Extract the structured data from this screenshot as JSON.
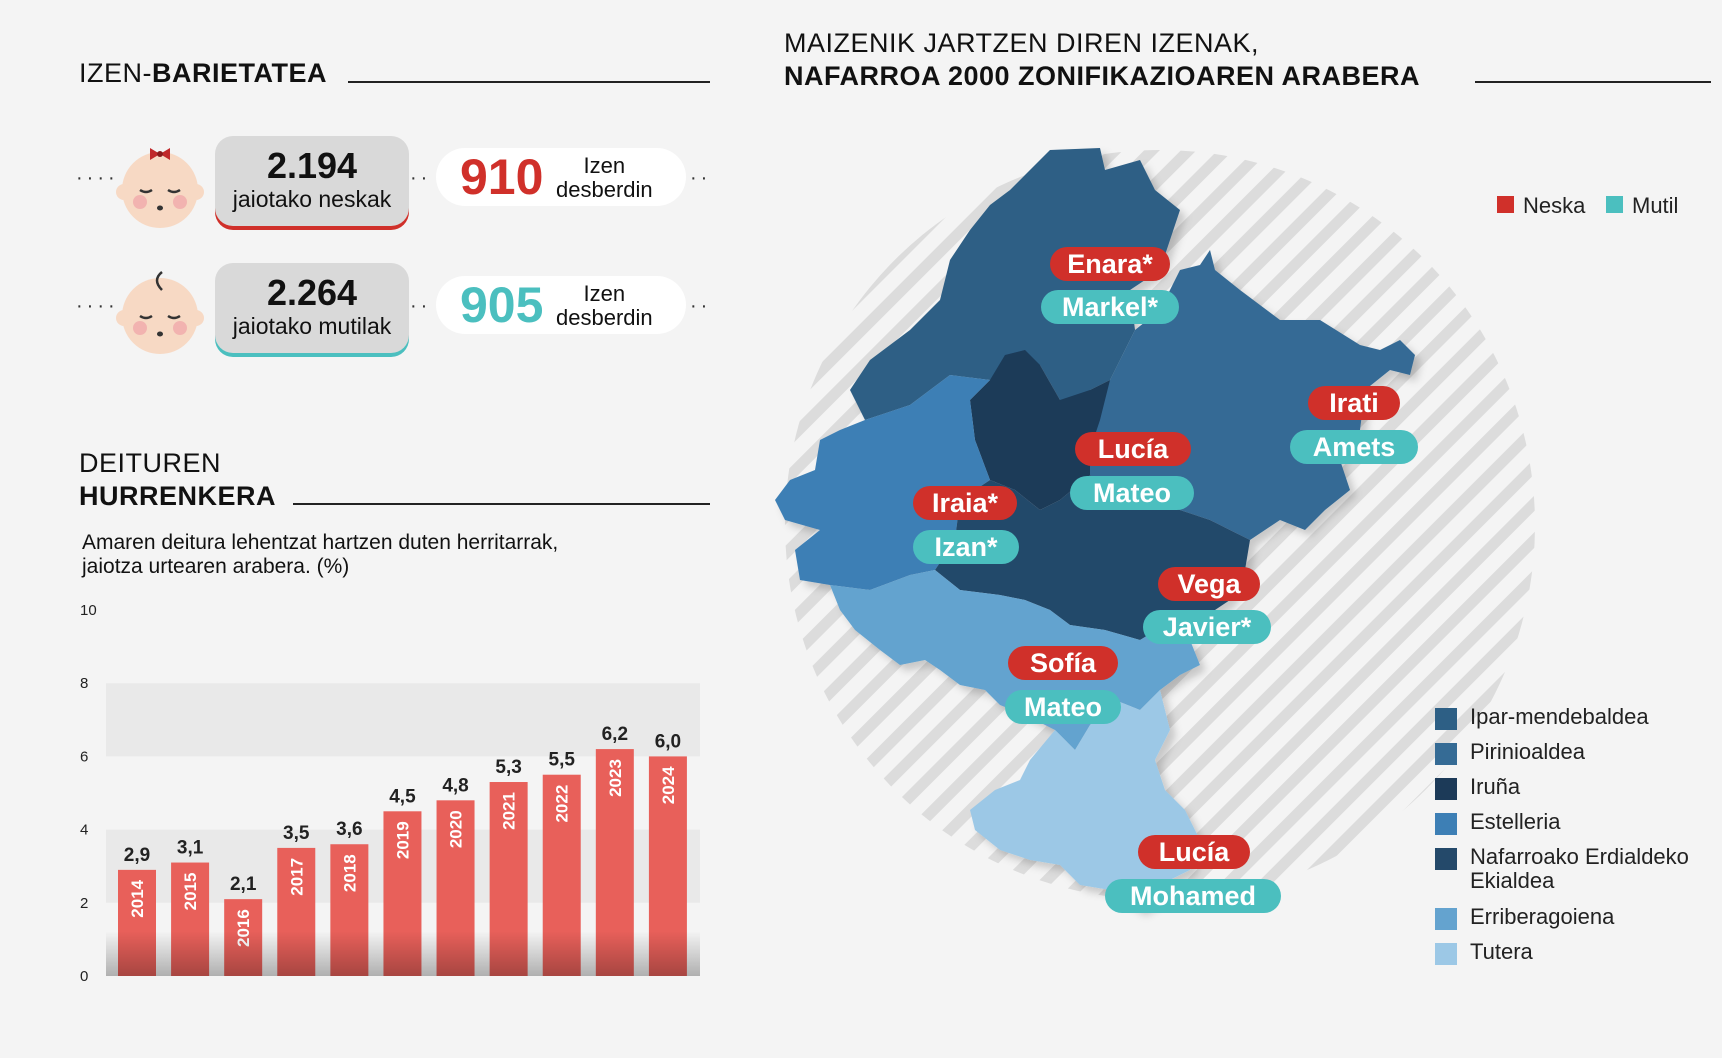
{
  "left": {
    "variety": {
      "title_light": "IZEN-",
      "title_bold": "BARIETATEA"
    },
    "girls": {
      "count": "2.194",
      "label": "jaiotako neskak",
      "unique_count": "910",
      "unique_label_1": "Izen",
      "unique_label_2": "desberdin",
      "color": "#d0302a"
    },
    "boys": {
      "count": "2.264",
      "label": "jaiotako mutilak",
      "unique_count": "905",
      "unique_label_1": "Izen",
      "unique_label_2": "desberdin",
      "color": "#4bbfbf"
    },
    "surnames": {
      "title_light": "DEITUREN",
      "title_bold": "HURRENKERA",
      "subtitle_1": "Amaren deitura lehentzat hartzen duten herritarrak,",
      "subtitle_2": "jaiotza urtearen arabera. (%)"
    }
  },
  "chart_data": {
    "type": "bar",
    "categories": [
      "2014",
      "2015",
      "2016",
      "2017",
      "2018",
      "2019",
      "2020",
      "2021",
      "2022",
      "2023",
      "2024"
    ],
    "values": [
      2.9,
      3.1,
      2.1,
      3.5,
      3.6,
      4.5,
      4.8,
      5.3,
      5.5,
      6.2,
      6.0
    ],
    "value_labels": [
      "2,9",
      "3,1",
      "2,1",
      "3,5",
      "3,6",
      "4,5",
      "4,8",
      "5,3",
      "5,5",
      "6,2",
      "6,0"
    ],
    "yticks": [
      "0",
      "2",
      "4",
      "6",
      "8",
      "10"
    ],
    "ylim": [
      0,
      10
    ],
    "bar_color": "#e8605a",
    "title": "Amaren deitura lehentzat hartzen duten herritarrak, jaiotza urtearen arabera. (%)"
  },
  "right": {
    "title_1": "MAIZENIK JARTZEN DIREN IZENAK,",
    "title_2": "NAFARROA 2000 ZONIFIKAZIOAREN ARABERA",
    "gender_legend": {
      "girl": "Neska",
      "boy": "Mutil",
      "girl_color": "#d0302a",
      "boy_color": "#4bbfbf"
    },
    "zones": [
      {
        "name": "Ipar-mendebaldea",
        "color": "#2d5f85",
        "girl": "Enara*",
        "boy": "Markel*"
      },
      {
        "name": "Pirinioaldea",
        "color": "#356b95",
        "girl": "Irati",
        "boy": "Amets"
      },
      {
        "name": "Iruña",
        "color": "#1c3a58",
        "girl": "Lucía",
        "boy": "Mateo"
      },
      {
        "name": "Estelleria",
        "color": "#3d7fb5",
        "girl": "Iraia*",
        "boy": "Izan*"
      },
      {
        "name": "Nafarroako Erdialdeko Ekialdea",
        "color": "#24496a",
        "girl": "Vega",
        "boy": "Javier*"
      },
      {
        "name": "Erriberagoiena",
        "color": "#64a3cf",
        "girl": "Sofía",
        "boy": "Mateo"
      },
      {
        "name": "Tutera",
        "color": "#9cc8e6",
        "girl": "Lucía",
        "boy": "Mohamed"
      }
    ]
  }
}
